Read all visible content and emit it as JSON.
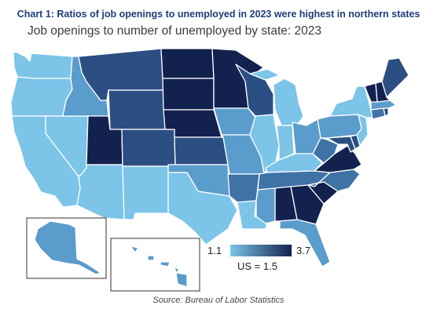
{
  "chart_title": "Chart 1: Ratios of job openings to unemployed in 2023 were highest in northern states",
  "map_title": "Job openings to number of unemployed by state: 2023",
  "source": "Source: Bureau of Labor Statistics",
  "legend": {
    "min_label": "1.1",
    "max_label": "3.7",
    "us_label": "US = 1.5",
    "min_color": "#7cc4e8",
    "max_color": "#13214f"
  },
  "colors": {
    "c1": "#7cc4e8",
    "c2": "#5a9ccb",
    "c3": "#3f73a6",
    "c4": "#2b4f82",
    "c5": "#1c3366",
    "c6": "#13214f"
  },
  "states": [
    {
      "id": "WA",
      "level": "c1"
    },
    {
      "id": "OR",
      "level": "c1"
    },
    {
      "id": "CA",
      "level": "c1"
    },
    {
      "id": "NV",
      "level": "c1"
    },
    {
      "id": "ID",
      "level": "c2"
    },
    {
      "id": "MT",
      "level": "c4"
    },
    {
      "id": "WY",
      "level": "c4"
    },
    {
      "id": "UT",
      "level": "c6"
    },
    {
      "id": "AZ",
      "level": "c1"
    },
    {
      "id": "CO",
      "level": "c4"
    },
    {
      "id": "NM",
      "level": "c1"
    },
    {
      "id": "ND",
      "level": "c6"
    },
    {
      "id": "SD",
      "level": "c6"
    },
    {
      "id": "NE",
      "level": "c6"
    },
    {
      "id": "KS",
      "level": "c4"
    },
    {
      "id": "OK",
      "level": "c2"
    },
    {
      "id": "TX",
      "level": "c1"
    },
    {
      "id": "MN",
      "level": "c6"
    },
    {
      "id": "IA",
      "level": "c2"
    },
    {
      "id": "MO",
      "level": "c2"
    },
    {
      "id": "AR",
      "level": "c3"
    },
    {
      "id": "LA",
      "level": "c1"
    },
    {
      "id": "WI",
      "level": "c4"
    },
    {
      "id": "IL",
      "level": "c1"
    },
    {
      "id": "MI",
      "level": "c1"
    },
    {
      "id": "IN",
      "level": "c1"
    },
    {
      "id": "OH",
      "level": "c2"
    },
    {
      "id": "KY",
      "level": "c1"
    },
    {
      "id": "TN",
      "level": "c3"
    },
    {
      "id": "MS",
      "level": "c2"
    },
    {
      "id": "AL",
      "level": "c6"
    },
    {
      "id": "GA",
      "level": "c6"
    },
    {
      "id": "FL",
      "level": "c2"
    },
    {
      "id": "SC",
      "level": "c6"
    },
    {
      "id": "NC",
      "level": "c3"
    },
    {
      "id": "VA",
      "level": "c6"
    },
    {
      "id": "WV",
      "level": "c3"
    },
    {
      "id": "MD",
      "level": "c4"
    },
    {
      "id": "DE",
      "level": "c4"
    },
    {
      "id": "PA",
      "level": "c2"
    },
    {
      "id": "NJ",
      "level": "c1"
    },
    {
      "id": "NY",
      "level": "c1"
    },
    {
      "id": "CT",
      "level": "c3"
    },
    {
      "id": "RI",
      "level": "c4"
    },
    {
      "id": "MA",
      "level": "c2"
    },
    {
      "id": "VT",
      "level": "c6"
    },
    {
      "id": "NH",
      "level": "c6"
    },
    {
      "id": "ME",
      "level": "c4"
    },
    {
      "id": "AK",
      "level": "c2"
    },
    {
      "id": "HI",
      "level": "c2"
    }
  ]
}
